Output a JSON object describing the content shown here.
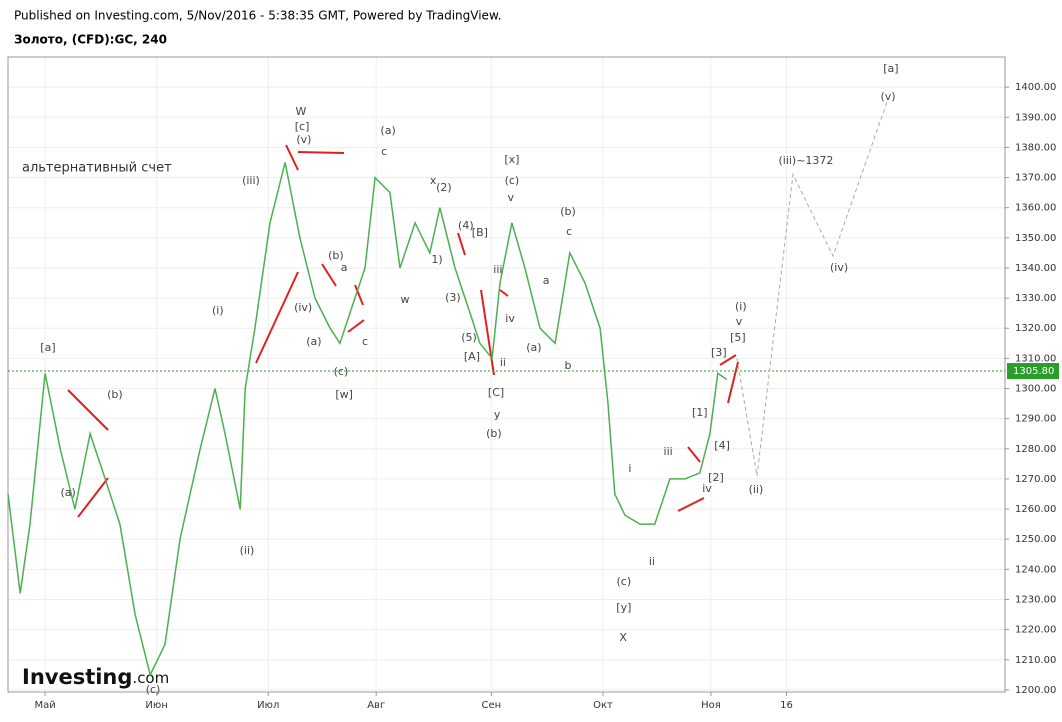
{
  "header": {
    "published": "Published on Investing.com, 5/Nov/2016 - 5:38:35 GMT, Powered by TradingView.",
    "symbol": "Золото, (CFD):GC, 240",
    "logo": "Investing",
    "logo_suffix": ".com"
  },
  "chart_data": {
    "type": "line",
    "grid": true,
    "note": "альтернативный счет",
    "xlim": [
      -10.3,
      266.7
    ],
    "ylim": [
      1199.3,
      1410
    ],
    "xticks": [
      {
        "value": 0,
        "label": "Май"
      },
      {
        "value": 31,
        "label": "Июн"
      },
      {
        "value": 62,
        "label": "Июл"
      },
      {
        "value": 92,
        "label": "Авг"
      },
      {
        "value": 124,
        "label": "Сен"
      },
      {
        "value": 155,
        "label": "Окт"
      },
      {
        "value": 185,
        "label": "Ноя"
      },
      {
        "value": 206,
        "label": "16"
      }
    ],
    "yticks": [
      {
        "value": 1200,
        "label": "1200.00"
      },
      {
        "value": 1210,
        "label": "1210.00"
      },
      {
        "value": 1220,
        "label": "1220.00"
      },
      {
        "value": 1230,
        "label": "1230.00"
      },
      {
        "value": 1240,
        "label": "1240.00"
      },
      {
        "value": 1250,
        "label": "1250.00"
      },
      {
        "value": 1260,
        "label": "1260.00"
      },
      {
        "value": 1270,
        "label": "1270.00"
      },
      {
        "value": 1280,
        "label": "1280.00"
      },
      {
        "value": 1290,
        "label": "1290.00"
      },
      {
        "value": 1300,
        "label": "1300.00"
      },
      {
        "value": 1310,
        "label": "1310.00"
      },
      {
        "value": 1320,
        "label": "1320.00"
      },
      {
        "value": 1330,
        "label": "1330.00"
      },
      {
        "value": 1340,
        "label": "1340.00"
      },
      {
        "value": 1350,
        "label": "1350.00"
      },
      {
        "value": 1360,
        "label": "1360.00"
      },
      {
        "value": 1370,
        "label": "1370.00"
      },
      {
        "value": 1380,
        "label": "1380.00"
      },
      {
        "value": 1390,
        "label": "1390.00"
      },
      {
        "value": 1400,
        "label": "1400.00"
      }
    ],
    "last_price": {
      "value": 1305.8,
      "label": "1305.80"
    },
    "series": [
      {
        "color": "#4caf50",
        "x": [
          -10.3,
          -6.9,
          -4.2,
          0,
          4.2,
          8.3,
          12.5,
          16.7,
          20.8,
          25,
          29.2,
          33.3,
          37.5,
          43.1,
          47.2,
          50,
          54.2,
          55.6,
          58.3,
          62.5,
          66.7,
          70.8,
          75,
          79.2,
          81.9,
          84.7,
          88.9,
          91.7,
          95.8,
          98.6,
          102.8,
          106.9,
          109.7,
          113.9,
          118.1,
          120.8,
          124.2,
          126.4,
          129.7,
          133.3,
          137.5,
          141.7,
          145.8,
          150,
          154.2,
          156.4,
          158.3,
          161.1,
          165.3,
          169.4,
          173.6,
          177.8,
          181.9,
          184.7,
          186.9,
          189.4
        ],
        "values": [
          1265,
          1232,
          1255,
          1305,
          1280,
          1260,
          1285,
          1270,
          1255,
          1225,
          1205,
          1215,
          1250,
          1280,
          1300,
          1285,
          1260,
          1300,
          1320,
          1355,
          1375,
          1350,
          1330,
          1320,
          1315,
          1325,
          1340,
          1370,
          1365,
          1340,
          1355,
          1345,
          1360,
          1340,
          1325,
          1315,
          1310,
          1335,
          1355,
          1340,
          1320,
          1315,
          1345,
          1335,
          1320,
          1295,
          1265,
          1258,
          1255,
          1255,
          1270,
          1270,
          1272,
          1285,
          1305,
          1303
        ]
      },
      {
        "color": "#aaaaaa",
        "dashed": true,
        "x": [
          192.2,
          197.8,
          207.8,
          218.9,
          234.2
        ],
        "values": [
          1310,
          1271,
          1371,
          1344,
          1396
        ]
      }
    ],
    "annotations": [
      {
        "text": "[a]",
        "x": 0.8,
        "y": 1313.4
      },
      {
        "text": "(b)",
        "x": 19.4,
        "y": 1297.8
      },
      {
        "text": "(a)",
        "x": 6.4,
        "y": 1265.3
      },
      {
        "text": "(c)",
        "x": 30,
        "y": 1200
      },
      {
        "text": "(i)",
        "x": 48,
        "y": 1325.7
      },
      {
        "text": "(ii)",
        "x": 56.1,
        "y": 1246.1
      },
      {
        "text": "(iii)",
        "x": 57.2,
        "y": 1368.8
      },
      {
        "text": "W",
        "x": 71.1,
        "y": 1391.7
      },
      {
        "text": "[c]",
        "x": 71.4,
        "y": 1386.7
      },
      {
        "text": "(v)",
        "x": 71.9,
        "y": 1382.4
      },
      {
        "text": "(iv)",
        "x": 71.7,
        "y": 1326.7
      },
      {
        "text": "(b)",
        "x": 80.8,
        "y": 1344
      },
      {
        "text": "a",
        "x": 83.1,
        "y": 1340
      },
      {
        "text": "(a)",
        "x": 74.7,
        "y": 1315.4
      },
      {
        "text": "(c)",
        "x": 82.2,
        "y": 1305.5
      },
      {
        "text": "c",
        "x": 88.9,
        "y": 1315.4
      },
      {
        "text": "[w]",
        "x": 83.1,
        "y": 1297.8
      },
      {
        "text": "(a)",
        "x": 95.3,
        "y": 1385.4
      },
      {
        "text": "c",
        "x": 94.2,
        "y": 1378.4
      },
      {
        "text": "x",
        "x": 107.8,
        "y": 1368.8
      },
      {
        "text": "(2)",
        "x": 110.8,
        "y": 1366.5
      },
      {
        "text": "w",
        "x": 100,
        "y": 1329.4
      },
      {
        "text": "1)",
        "x": 108.9,
        "y": 1342.6
      },
      {
        "text": "(4)",
        "x": 116.9,
        "y": 1353.9
      },
      {
        "text": "[B]",
        "x": 120.8,
        "y": 1351.6
      },
      {
        "text": "(3)",
        "x": 113.3,
        "y": 1330
      },
      {
        "text": "(5)",
        "x": 117.8,
        "y": 1316.7
      },
      {
        "text": "[A]",
        "x": 118.6,
        "y": 1310.4
      },
      {
        "text": "[x]",
        "x": 129.7,
        "y": 1375.8
      },
      {
        "text": "(c)",
        "x": 129.7,
        "y": 1368.8
      },
      {
        "text": "v",
        "x": 129.4,
        "y": 1363.2
      },
      {
        "text": "iii",
        "x": 125.8,
        "y": 1339.3
      },
      {
        "text": "iv",
        "x": 129.2,
        "y": 1323.1
      },
      {
        "text": "ii",
        "x": 127.2,
        "y": 1308.5
      },
      {
        "text": "[C]",
        "x": 125.3,
        "y": 1298.5
      },
      {
        "text": "y",
        "x": 125.6,
        "y": 1291.2
      },
      {
        "text": "(b)",
        "x": 124.7,
        "y": 1284.9
      },
      {
        "text": "(b)",
        "x": 145.3,
        "y": 1358.5
      },
      {
        "text": "c",
        "x": 145.6,
        "y": 1351.9
      },
      {
        "text": "a",
        "x": 139.2,
        "y": 1335.7
      },
      {
        "text": "(a)",
        "x": 135.8,
        "y": 1313.4
      },
      {
        "text": "b",
        "x": 145.3,
        "y": 1307.5
      },
      {
        "text": "i",
        "x": 162.5,
        "y": 1273.3
      },
      {
        "text": "(c)",
        "x": 160.8,
        "y": 1235.8
      },
      {
        "text": "[y]",
        "x": 160.8,
        "y": 1227.2
      },
      {
        "text": "X",
        "x": 160.6,
        "y": 1217.2
      },
      {
        "text": "ii",
        "x": 168.6,
        "y": 1242.5
      },
      {
        "text": "iii",
        "x": 173.1,
        "y": 1278.9
      },
      {
        "text": "iv",
        "x": 183.9,
        "y": 1266.7
      },
      {
        "text": "[1]",
        "x": 181.9,
        "y": 1291.9
      },
      {
        "text": "[2]",
        "x": 186.4,
        "y": 1270.3
      },
      {
        "text": "[3]",
        "x": 187.2,
        "y": 1311.8
      },
      {
        "text": "[4]",
        "x": 188.1,
        "y": 1280.9
      },
      {
        "text": "[5]",
        "x": 192.5,
        "y": 1316.7
      },
      {
        "text": "(i)",
        "x": 193.3,
        "y": 1327
      },
      {
        "text": "v",
        "x": 192.8,
        "y": 1322
      },
      {
        "text": "(ii)",
        "x": 197.5,
        "y": 1266.3
      },
      {
        "text": "(iii)~1372",
        "x": 211.4,
        "y": 1375.5
      },
      {
        "text": "(iv)",
        "x": 220.6,
        "y": 1340
      },
      {
        "text": "(v)",
        "x": 234.2,
        "y": 1396.7
      },
      {
        "text": "[a]",
        "x": 235,
        "y": 1406
      }
    ]
  }
}
